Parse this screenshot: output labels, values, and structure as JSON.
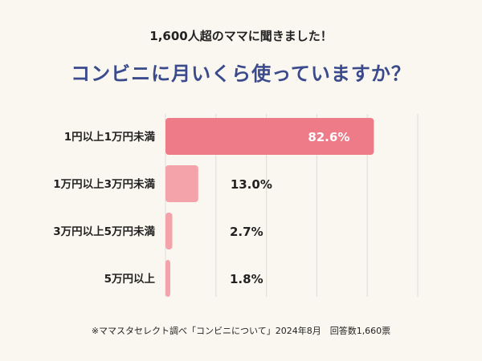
{
  "header": {
    "subtitle": "1,600人超のママに聞きました！",
    "title": "コンビニに月いくら使っていますか？"
  },
  "footnote": "※ママスタセレクト調べ「コンビニについて」2024年8月　回答数1,660票",
  "colors": {
    "background": "#faf7f0",
    "title": "#3a4a8c",
    "bar_top": "#ee7b88",
    "bar_other": "#f4a3aa",
    "grid": "#dcdcdc",
    "inside_label": "#ffffff",
    "outside_label": "#222222"
  },
  "chart_data": {
    "type": "bar",
    "orientation": "horizontal",
    "categories": [
      "1円以上1万円未満",
      "1万円以上3万円未満",
      "3万円以上5万円未満",
      "5万円以上"
    ],
    "values": [
      82.6,
      13.0,
      2.7,
      1.8
    ],
    "value_labels": [
      "82.6%",
      "13.0%",
      "2.7%",
      "1.8%"
    ],
    "unit": "%",
    "xlim": [
      0,
      100
    ],
    "grid": true,
    "legend": "none"
  }
}
